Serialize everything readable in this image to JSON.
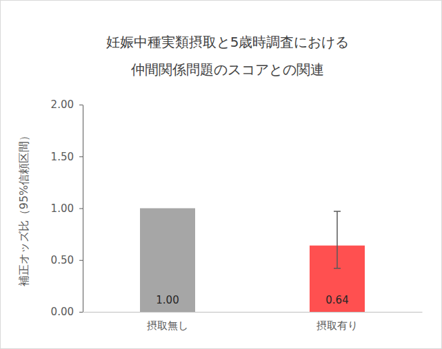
{
  "chart_data": {
    "type": "bar",
    "title": [
      "妊娠中種実類摂取と5歳時調査における",
      "仲間関係問題のスコアとの関連"
    ],
    "y_label": "補正オッズ比（95%信頼区間）",
    "categories": [
      "摂取無し",
      "摂取有り"
    ],
    "values": [
      1.0,
      0.64
    ],
    "value_labels": [
      "1.00",
      "0.64"
    ],
    "ci_lower": [
      null,
      0.42
    ],
    "ci_upper": [
      null,
      0.97
    ],
    "colors": [
      "#a6a6a6",
      "#ff5050"
    ],
    "ylim": [
      0,
      2
    ],
    "yticks": [
      {
        "value": 0,
        "label": "0.00"
      },
      {
        "value": 0.5,
        "label": "0.50"
      },
      {
        "value": 1,
        "label": "1.00"
      },
      {
        "value": 1.5,
        "label": "1.50"
      },
      {
        "value": 2,
        "label": "2.00"
      }
    ],
    "grid": false,
    "data_labels": true
  }
}
